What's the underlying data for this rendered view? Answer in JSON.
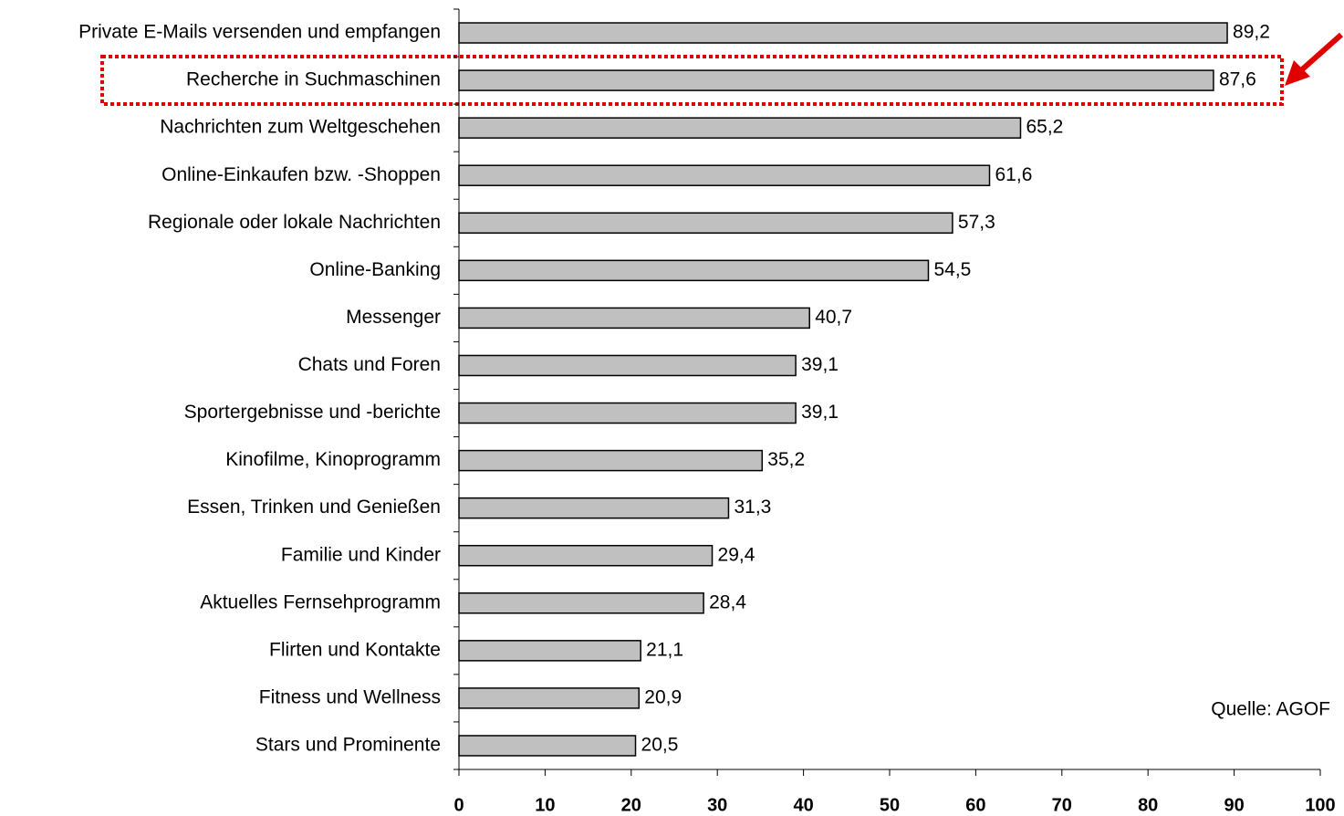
{
  "chart_data": {
    "type": "bar",
    "orientation": "horizontal",
    "categories": [
      "Private E-Mails versenden und empfangen",
      "Recherche in Suchmaschinen",
      "Nachrichten zum Weltgeschehen",
      "Online-Einkaufen bzw. -Shoppen",
      "Regionale oder lokale Nachrichten",
      "Online-Banking",
      "Messenger",
      "Chats und Foren",
      "Sportergebnisse und -berichte",
      "Kinofilme, Kinoprogramm",
      "Essen, Trinken und Genießen",
      "Familie und Kinder",
      "Aktuelles Fernsehprogramm",
      "Flirten und Kontakte",
      "Fitness und Wellness",
      "Stars und Prominente"
    ],
    "values": [
      89.2,
      87.6,
      65.2,
      61.6,
      57.3,
      54.5,
      40.7,
      39.1,
      39.1,
      35.2,
      31.3,
      29.4,
      28.4,
      21.1,
      20.9,
      20.5
    ],
    "value_labels": [
      "89,2",
      "87,6",
      "65,2",
      "61,6",
      "57,3",
      "54,5",
      "40,7",
      "39,1",
      "39,1",
      "35,2",
      "31,3",
      "29,4",
      "28,4",
      "21,1",
      "20,9",
      "20,5"
    ],
    "color": "#c0c0c0",
    "xlim": [
      0,
      100
    ],
    "xticks": [
      0,
      10,
      20,
      30,
      40,
      50,
      60,
      70,
      80,
      90,
      100
    ],
    "annotation": "Quelle: AGOF"
  }
}
